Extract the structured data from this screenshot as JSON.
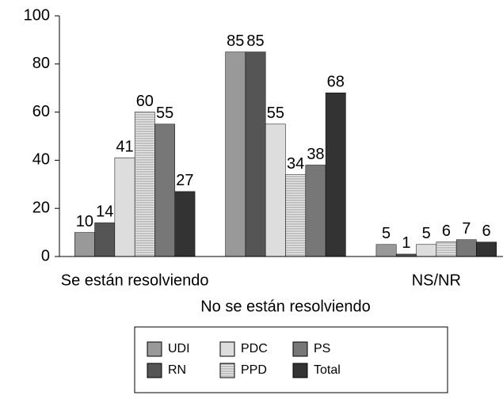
{
  "chart_data": {
    "type": "bar",
    "categories": [
      "Se están resolviendo",
      "No se están resolviendo",
      "NS/NR"
    ],
    "series": [
      {
        "name": "UDI",
        "color": "#999999",
        "values": [
          10,
          85,
          5
        ]
      },
      {
        "name": "RN",
        "color": "#555555",
        "values": [
          14,
          85,
          1
        ]
      },
      {
        "name": "PDC",
        "color": "#dddddd",
        "values": [
          41,
          55,
          5
        ]
      },
      {
        "name": "PPD",
        "color": "#cccccc",
        "hatch": true,
        "values": [
          60,
          34,
          6
        ]
      },
      {
        "name": "PS",
        "color": "#777777",
        "values": [
          55,
          38,
          7
        ]
      },
      {
        "name": "Total",
        "color": "#333333",
        "values": [
          27,
          68,
          6
        ]
      }
    ],
    "ylim": [
      0,
      100
    ],
    "yticks": [
      0,
      20,
      40,
      60,
      80,
      100
    ]
  }
}
